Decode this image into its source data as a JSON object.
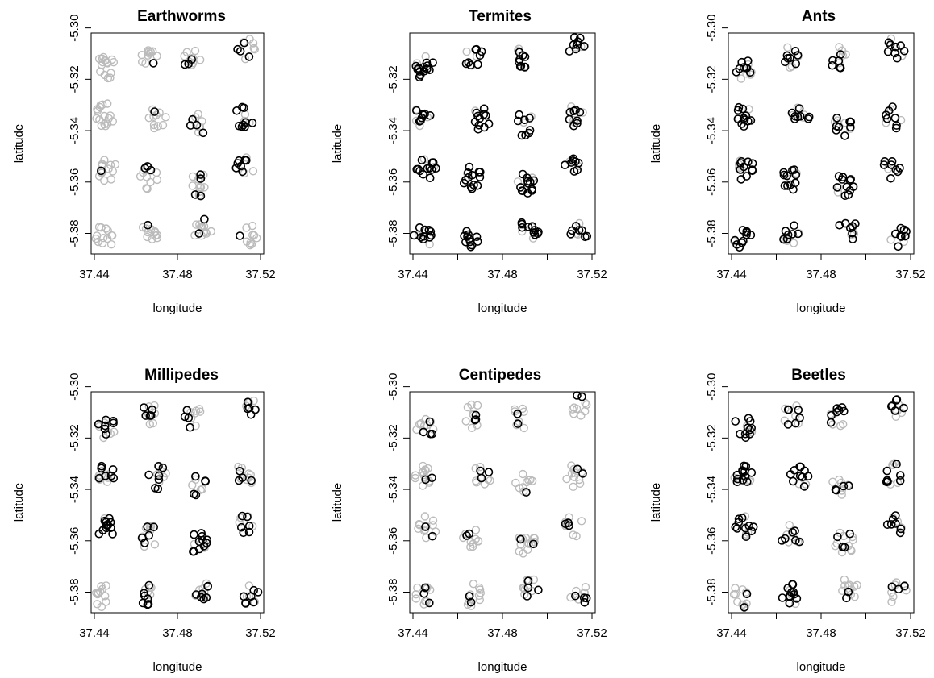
{
  "figure": {
    "xlabel": "longitude",
    "ylabel": "latitude",
    "legend_colors": {
      "present": "#000000",
      "absent": "#bbbbbb"
    }
  },
  "chart_data": [
    {
      "type": "scatter",
      "title": "Earthworms",
      "xlabel": "longitude",
      "ylabel": "latitude",
      "xlim": [
        37.44,
        37.52
      ],
      "ylim": [
        -5.388,
        -5.302
      ],
      "xticks": [
        "37.44",
        "37.48",
        "37.52"
      ],
      "yticks": [
        "-5.30",
        "-5.32",
        "-5.34",
        "-5.36",
        "-5.38"
      ],
      "clusters": [
        {
          "x": 37.4455,
          "y": -5.3155,
          "n": 16,
          "black_frac": 0.0
        },
        {
          "x": 37.467,
          "y": -5.3115,
          "n": 11,
          "black_frac": 0.1
        },
        {
          "x": 37.4875,
          "y": -5.312,
          "n": 11,
          "black_frac": 0.3
        },
        {
          "x": 37.5135,
          "y": -5.308,
          "n": 10,
          "black_frac": 0.4
        },
        {
          "x": 37.445,
          "y": -5.334,
          "n": 16,
          "black_frac": 0.0
        },
        {
          "x": 37.4705,
          "y": -5.3355,
          "n": 12,
          "black_frac": 0.08
        },
        {
          "x": 37.4895,
          "y": -5.3375,
          "n": 10,
          "black_frac": 0.4
        },
        {
          "x": 37.5125,
          "y": -5.3345,
          "n": 12,
          "black_frac": 0.75
        },
        {
          "x": 37.446,
          "y": -5.355,
          "n": 14,
          "black_frac": 0.1
        },
        {
          "x": 37.4665,
          "y": -5.3585,
          "n": 12,
          "black_frac": 0.25
        },
        {
          "x": 37.4905,
          "y": -5.361,
          "n": 14,
          "black_frac": 0.3
        },
        {
          "x": 37.512,
          "y": -5.3545,
          "n": 10,
          "black_frac": 0.65
        },
        {
          "x": 37.4445,
          "y": -5.3815,
          "n": 13,
          "black_frac": 0.0
        },
        {
          "x": 37.4665,
          "y": -5.381,
          "n": 12,
          "black_frac": 0.12
        },
        {
          "x": 37.492,
          "y": -5.3785,
          "n": 13,
          "black_frac": 0.12
        },
        {
          "x": 37.5145,
          "y": -5.3805,
          "n": 10,
          "black_frac": 0.1
        }
      ]
    },
    {
      "type": "scatter",
      "title": "Termites",
      "xlabel": "longitude",
      "ylabel": "latitude",
      "xlim": [
        37.44,
        37.52
      ],
      "ylim": [
        -5.388,
        -5.302
      ],
      "xticks": [
        "37.44",
        "37.48",
        "37.52"
      ],
      "yticks": [
        "-5.32",
        "-5.34",
        "-5.36",
        "-5.38"
      ],
      "clusters": [
        {
          "x": 37.4455,
          "y": -5.3155,
          "n": 16,
          "black_frac": 0.8
        },
        {
          "x": 37.467,
          "y": -5.3115,
          "n": 11,
          "black_frac": 0.7
        },
        {
          "x": 37.4875,
          "y": -5.312,
          "n": 11,
          "black_frac": 0.85
        },
        {
          "x": 37.5135,
          "y": -5.308,
          "n": 10,
          "black_frac": 0.8
        },
        {
          "x": 37.445,
          "y": -5.334,
          "n": 12,
          "black_frac": 0.7
        },
        {
          "x": 37.4705,
          "y": -5.3355,
          "n": 12,
          "black_frac": 0.9
        },
        {
          "x": 37.4895,
          "y": -5.3375,
          "n": 10,
          "black_frac": 0.8
        },
        {
          "x": 37.5125,
          "y": -5.3345,
          "n": 12,
          "black_frac": 0.7
        },
        {
          "x": 37.446,
          "y": -5.355,
          "n": 14,
          "black_frac": 0.85
        },
        {
          "x": 37.4665,
          "y": -5.3585,
          "n": 14,
          "black_frac": 0.9
        },
        {
          "x": 37.4905,
          "y": -5.361,
          "n": 14,
          "black_frac": 0.85
        },
        {
          "x": 37.512,
          "y": -5.3545,
          "n": 10,
          "black_frac": 0.8
        },
        {
          "x": 37.4445,
          "y": -5.3815,
          "n": 12,
          "black_frac": 0.85
        },
        {
          "x": 37.4665,
          "y": -5.381,
          "n": 12,
          "black_frac": 0.9
        },
        {
          "x": 37.492,
          "y": -5.3785,
          "n": 13,
          "black_frac": 0.8
        },
        {
          "x": 37.5145,
          "y": -5.3805,
          "n": 10,
          "black_frac": 0.7
        }
      ]
    },
    {
      "type": "scatter",
      "title": "Ants",
      "xlabel": "longitude",
      "ylabel": "latitude",
      "xlim": [
        37.44,
        37.52
      ],
      "ylim": [
        -5.388,
        -5.302
      ],
      "xticks": [
        "37.44",
        "37.48",
        "37.52"
      ],
      "yticks": [
        "-5.30",
        "-5.32",
        "-5.34",
        "-5.36",
        "-5.38"
      ],
      "clusters": [
        {
          "x": 37.4455,
          "y": -5.3155,
          "n": 14,
          "black_frac": 0.6
        },
        {
          "x": 37.467,
          "y": -5.3115,
          "n": 11,
          "black_frac": 0.6
        },
        {
          "x": 37.4875,
          "y": -5.312,
          "n": 11,
          "black_frac": 0.5
        },
        {
          "x": 37.5135,
          "y": -5.308,
          "n": 10,
          "black_frac": 0.8
        },
        {
          "x": 37.445,
          "y": -5.334,
          "n": 14,
          "black_frac": 0.8
        },
        {
          "x": 37.4705,
          "y": -5.3355,
          "n": 12,
          "black_frac": 0.65
        },
        {
          "x": 37.4895,
          "y": -5.3375,
          "n": 12,
          "black_frac": 0.7
        },
        {
          "x": 37.5125,
          "y": -5.3345,
          "n": 10,
          "black_frac": 0.7
        },
        {
          "x": 37.446,
          "y": -5.355,
          "n": 14,
          "black_frac": 0.7
        },
        {
          "x": 37.4665,
          "y": -5.3585,
          "n": 14,
          "black_frac": 0.75
        },
        {
          "x": 37.4905,
          "y": -5.361,
          "n": 14,
          "black_frac": 0.8
        },
        {
          "x": 37.512,
          "y": -5.3545,
          "n": 10,
          "black_frac": 0.8
        },
        {
          "x": 37.4445,
          "y": -5.3815,
          "n": 12,
          "black_frac": 0.85
        },
        {
          "x": 37.4665,
          "y": -5.381,
          "n": 12,
          "black_frac": 0.55
        },
        {
          "x": 37.492,
          "y": -5.3785,
          "n": 10,
          "black_frac": 0.7
        },
        {
          "x": 37.5145,
          "y": -5.3805,
          "n": 11,
          "black_frac": 0.75
        }
      ]
    },
    {
      "type": "scatter",
      "title": "Millipedes",
      "xlabel": "longitude",
      "ylabel": "latitude",
      "xlim": [
        37.44,
        37.52
      ],
      "ylim": [
        -5.388,
        -5.302
      ],
      "xticks": [
        "37.44",
        "37.48",
        "37.52"
      ],
      "yticks": [
        "-5.30",
        "-5.32",
        "-5.34",
        "-5.36",
        "-5.38"
      ],
      "clusters": [
        {
          "x": 37.4455,
          "y": -5.3155,
          "n": 14,
          "black_frac": 0.5
        },
        {
          "x": 37.467,
          "y": -5.3115,
          "n": 11,
          "black_frac": 0.45
        },
        {
          "x": 37.4875,
          "y": -5.312,
          "n": 11,
          "black_frac": 0.4
        },
        {
          "x": 37.5135,
          "y": -5.308,
          "n": 11,
          "black_frac": 0.45
        },
        {
          "x": 37.445,
          "y": -5.334,
          "n": 14,
          "black_frac": 0.5
        },
        {
          "x": 37.4705,
          "y": -5.3355,
          "n": 12,
          "black_frac": 0.6
        },
        {
          "x": 37.4895,
          "y": -5.3375,
          "n": 10,
          "black_frac": 0.5
        },
        {
          "x": 37.5125,
          "y": -5.3345,
          "n": 12,
          "black_frac": 0.3
        },
        {
          "x": 37.446,
          "y": -5.355,
          "n": 14,
          "black_frac": 0.85
        },
        {
          "x": 37.4665,
          "y": -5.3585,
          "n": 12,
          "black_frac": 0.4
        },
        {
          "x": 37.4905,
          "y": -5.361,
          "n": 14,
          "black_frac": 0.75
        },
        {
          "x": 37.512,
          "y": -5.3545,
          "n": 10,
          "black_frac": 0.6
        },
        {
          "x": 37.4445,
          "y": -5.3815,
          "n": 12,
          "black_frac": 0.0
        },
        {
          "x": 37.4665,
          "y": -5.381,
          "n": 12,
          "black_frac": 0.55
        },
        {
          "x": 37.492,
          "y": -5.3785,
          "n": 13,
          "black_frac": 0.5
        },
        {
          "x": 37.5145,
          "y": -5.3805,
          "n": 11,
          "black_frac": 0.6
        }
      ]
    },
    {
      "type": "scatter",
      "title": "Centipedes",
      "xlabel": "longitude",
      "ylabel": "latitude",
      "xlim": [
        37.44,
        37.52
      ],
      "ylim": [
        -5.388,
        -5.302
      ],
      "xticks": [
        "37.44",
        "37.48",
        "37.52"
      ],
      "yticks": [
        "-5.30",
        "-5.32",
        "-5.34",
        "-5.36",
        "-5.38"
      ],
      "clusters": [
        {
          "x": 37.4455,
          "y": -5.3155,
          "n": 12,
          "black_frac": 0.3
        },
        {
          "x": 37.467,
          "y": -5.3115,
          "n": 11,
          "black_frac": 0.3
        },
        {
          "x": 37.4875,
          "y": -5.312,
          "n": 10,
          "black_frac": 0.2
        },
        {
          "x": 37.5135,
          "y": -5.308,
          "n": 10,
          "black_frac": 0.2
        },
        {
          "x": 37.445,
          "y": -5.334,
          "n": 14,
          "black_frac": 0.15
        },
        {
          "x": 37.4705,
          "y": -5.3355,
          "n": 11,
          "black_frac": 0.3
        },
        {
          "x": 37.4895,
          "y": -5.3375,
          "n": 10,
          "black_frac": 0.1
        },
        {
          "x": 37.5125,
          "y": -5.3345,
          "n": 12,
          "black_frac": 0.15
        },
        {
          "x": 37.446,
          "y": -5.355,
          "n": 14,
          "black_frac": 0.15
        },
        {
          "x": 37.4665,
          "y": -5.3585,
          "n": 12,
          "black_frac": 0.2
        },
        {
          "x": 37.4905,
          "y": -5.361,
          "n": 14,
          "black_frac": 0.15
        },
        {
          "x": 37.512,
          "y": -5.3545,
          "n": 10,
          "black_frac": 0.3
        },
        {
          "x": 37.4445,
          "y": -5.3815,
          "n": 12,
          "black_frac": 0.25
        },
        {
          "x": 37.4665,
          "y": -5.381,
          "n": 12,
          "black_frac": 0.2
        },
        {
          "x": 37.492,
          "y": -5.3785,
          "n": 12,
          "black_frac": 0.3
        },
        {
          "x": 37.5145,
          "y": -5.3805,
          "n": 10,
          "black_frac": 0.4
        }
      ]
    },
    {
      "type": "scatter",
      "title": "Beetles",
      "xlabel": "longitude",
      "ylabel": "latitude",
      "xlim": [
        37.44,
        37.52
      ],
      "ylim": [
        -5.388,
        -5.302
      ],
      "xticks": [
        "37.44",
        "37.48",
        "37.52"
      ],
      "yticks": [
        "-5.30",
        "-5.32",
        "-5.34",
        "-5.36",
        "-5.38"
      ],
      "clusters": [
        {
          "x": 37.4455,
          "y": -5.3155,
          "n": 14,
          "black_frac": 0.7
        },
        {
          "x": 37.467,
          "y": -5.3115,
          "n": 11,
          "black_frac": 0.5
        },
        {
          "x": 37.4875,
          "y": -5.312,
          "n": 11,
          "black_frac": 0.6
        },
        {
          "x": 37.5135,
          "y": -5.308,
          "n": 11,
          "black_frac": 0.55
        },
        {
          "x": 37.445,
          "y": -5.334,
          "n": 16,
          "black_frac": 0.75
        },
        {
          "x": 37.4705,
          "y": -5.3355,
          "n": 12,
          "black_frac": 0.8
        },
        {
          "x": 37.4895,
          "y": -5.3375,
          "n": 10,
          "black_frac": 0.4
        },
        {
          "x": 37.5125,
          "y": -5.3345,
          "n": 12,
          "black_frac": 0.6
        },
        {
          "x": 37.446,
          "y": -5.355,
          "n": 14,
          "black_frac": 0.7
        },
        {
          "x": 37.4665,
          "y": -5.3585,
          "n": 12,
          "black_frac": 0.5
        },
        {
          "x": 37.4905,
          "y": -5.361,
          "n": 14,
          "black_frac": 0.3
        },
        {
          "x": 37.512,
          "y": -5.3545,
          "n": 10,
          "black_frac": 0.7
        },
        {
          "x": 37.4445,
          "y": -5.3815,
          "n": 12,
          "black_frac": 0.15
        },
        {
          "x": 37.4665,
          "y": -5.381,
          "n": 14,
          "black_frac": 0.8
        },
        {
          "x": 37.492,
          "y": -5.3785,
          "n": 12,
          "black_frac": 0.2
        },
        {
          "x": 37.5145,
          "y": -5.3805,
          "n": 10,
          "black_frac": 0.25
        }
      ]
    }
  ]
}
